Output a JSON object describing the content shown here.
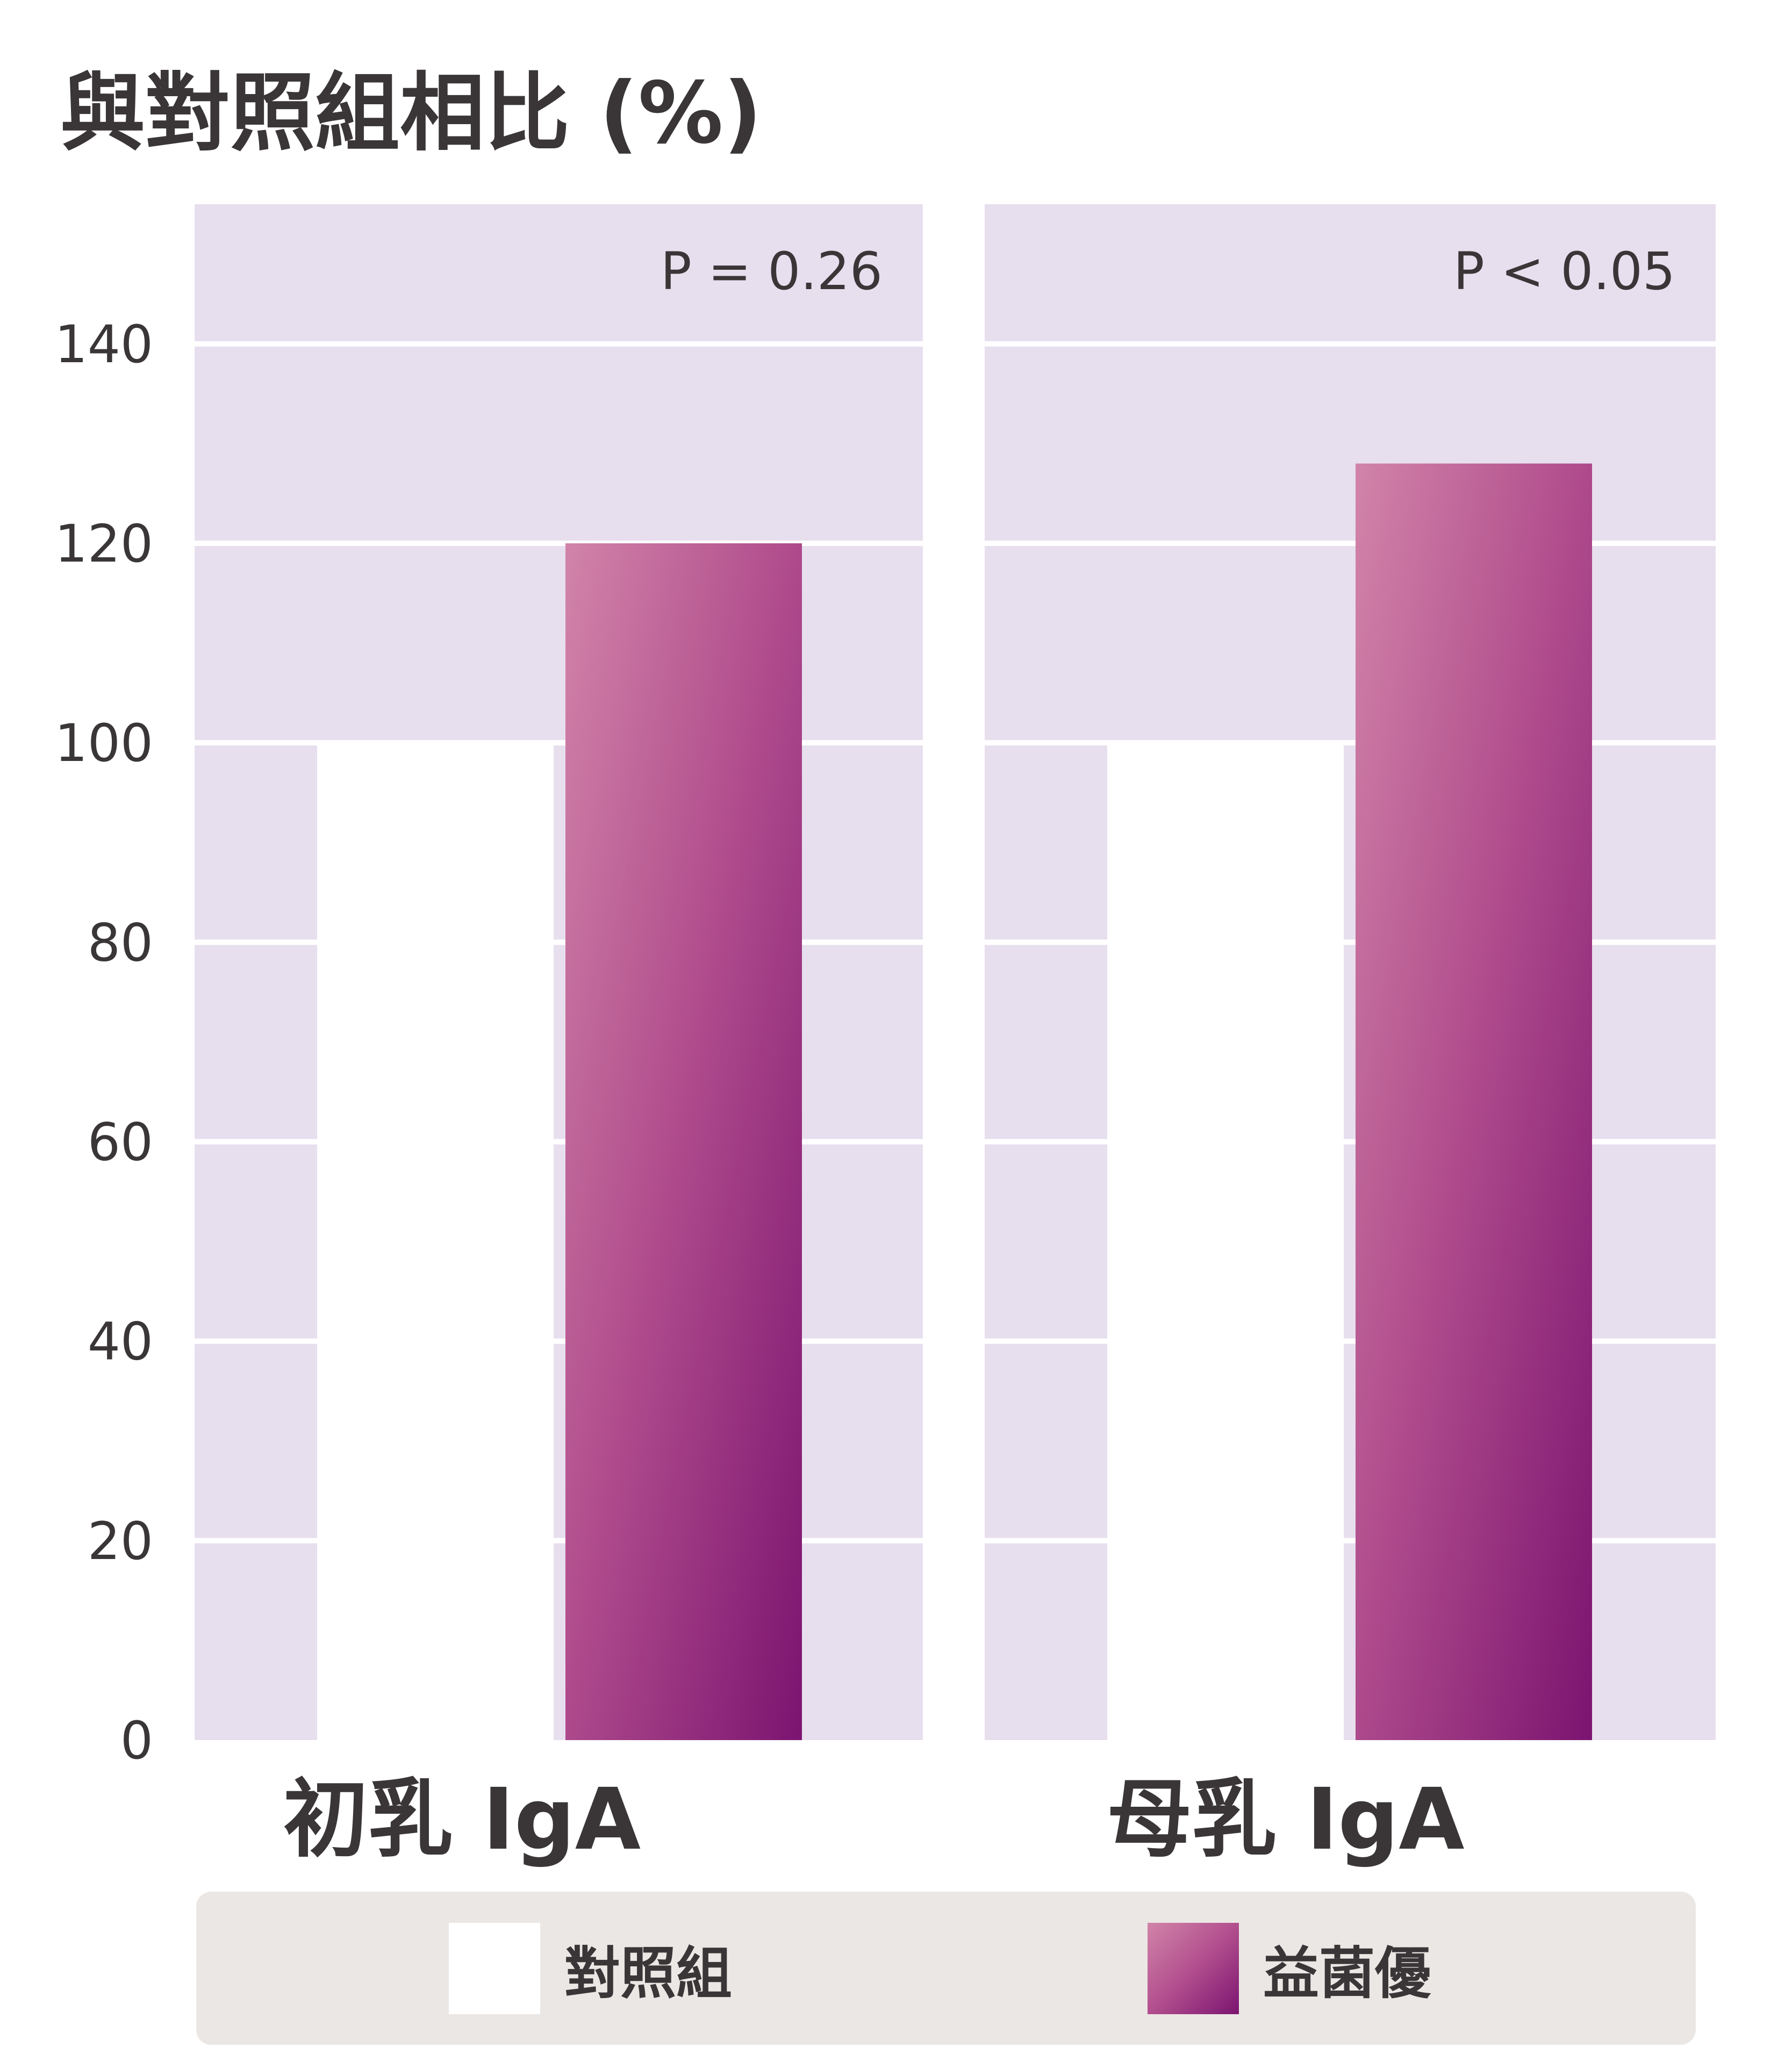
{
  "chart_data": {
    "type": "bar",
    "title": "與對照組相比 (%)",
    "ylim": [
      0,
      154
    ],
    "yticks": [
      0,
      20,
      40,
      60,
      80,
      100,
      120,
      140
    ],
    "grid": true,
    "legend_placement": "bottom",
    "panels": [
      {
        "category": "初乳 IgA",
        "annotation": "P = 0.26",
        "values": {
          "control": 100,
          "probiotic": 120
        }
      },
      {
        "category": "母乳 IgA",
        "annotation": "P < 0.05",
        "values": {
          "control": 100,
          "probiotic": 128
        }
      }
    ],
    "series": [
      {
        "key": "control",
        "name": "對照組",
        "color": "#ffffff"
      },
      {
        "key": "probiotic",
        "name": "益菌優",
        "color_top": "#d184a9",
        "color_bottom": "#7b1470"
      }
    ]
  },
  "colors": {
    "panel_background": "#e7dfee",
    "gridline": "#ffffff",
    "text": "#3a3638",
    "legend_background": "#ebe7e4"
  }
}
